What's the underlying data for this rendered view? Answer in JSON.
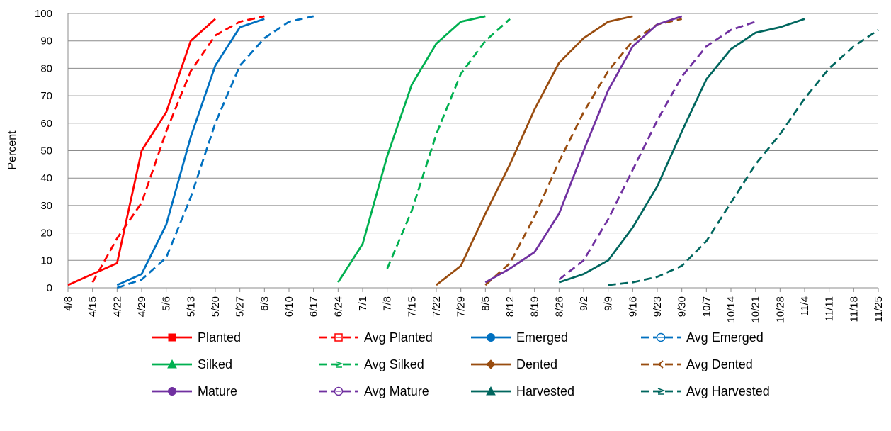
{
  "chart_data": {
    "type": "line",
    "title": "",
    "xlabel": "",
    "ylabel": "Percent",
    "ylim": [
      0,
      100
    ],
    "y_ticks": [
      0,
      10,
      20,
      30,
      40,
      50,
      60,
      70,
      80,
      90,
      100
    ],
    "grid": "horizontal",
    "legend_position": "bottom",
    "categories": [
      "4/8",
      "4/15",
      "4/22",
      "4/29",
      "5/6",
      "5/13",
      "5/20",
      "5/27",
      "6/3",
      "6/10",
      "6/17",
      "6/24",
      "7/1",
      "7/8",
      "7/15",
      "7/22",
      "7/29",
      "8/5",
      "8/12",
      "8/19",
      "8/26",
      "9/2",
      "9/9",
      "9/16",
      "9/23",
      "9/30",
      "10/7",
      "10/14",
      "10/21",
      "10/28",
      "11/4",
      "11/11",
      "11/18",
      "11/25"
    ],
    "series": [
      {
        "name": "Planted",
        "color": "#ff0000",
        "dashed": false,
        "marker": "square",
        "values": [
          1,
          5,
          9,
          50,
          64,
          90,
          98,
          null,
          null,
          null,
          null,
          null,
          null,
          null,
          null,
          null,
          null,
          null,
          null,
          null,
          null,
          null,
          null,
          null,
          null,
          null,
          null,
          null,
          null,
          null,
          null,
          null,
          null,
          null
        ]
      },
      {
        "name": "Avg Planted",
        "color": "#ff0000",
        "dashed": true,
        "marker": "square-open",
        "values": [
          null,
          2,
          18,
          31,
          57,
          79,
          92,
          97,
          99,
          null,
          null,
          null,
          null,
          null,
          null,
          null,
          null,
          null,
          null,
          null,
          null,
          null,
          null,
          null,
          null,
          null,
          null,
          null,
          null,
          null,
          null,
          null,
          null,
          null
        ]
      },
      {
        "name": "Emerged",
        "color": "#0070c0",
        "dashed": false,
        "marker": "circle",
        "values": [
          null,
          null,
          1,
          5,
          23,
          55,
          81,
          95,
          98,
          null,
          null,
          null,
          null,
          null,
          null,
          null,
          null,
          null,
          null,
          null,
          null,
          null,
          null,
          null,
          null,
          null,
          null,
          null,
          null,
          null,
          null,
          null,
          null,
          null
        ]
      },
      {
        "name": "Avg Emerged",
        "color": "#0070c0",
        "dashed": true,
        "marker": "circle-open",
        "values": [
          null,
          null,
          0,
          3,
          11,
          33,
          60,
          81,
          91,
          97,
          99,
          null,
          null,
          null,
          null,
          null,
          null,
          null,
          null,
          null,
          null,
          null,
          null,
          null,
          null,
          null,
          null,
          null,
          null,
          null,
          null,
          null,
          null,
          null
        ]
      },
      {
        "name": "Silked",
        "color": "#00b050",
        "dashed": false,
        "marker": "triangle",
        "values": [
          null,
          null,
          null,
          null,
          null,
          null,
          null,
          null,
          null,
          null,
          null,
          2,
          16,
          48,
          74,
          89,
          97,
          99,
          null,
          null,
          null,
          null,
          null,
          null,
          null,
          null,
          null,
          null,
          null,
          null,
          null,
          null,
          null,
          null
        ]
      },
      {
        "name": "Avg Silked",
        "color": "#00b050",
        "dashed": true,
        "marker": "triangle-open",
        "values": [
          null,
          null,
          null,
          null,
          null,
          null,
          null,
          null,
          null,
          null,
          null,
          null,
          null,
          7,
          28,
          56,
          78,
          90,
          98,
          null,
          null,
          null,
          null,
          null,
          null,
          null,
          null,
          null,
          null,
          null,
          null,
          null,
          null,
          null
        ]
      },
      {
        "name": "Dented",
        "color": "#994c0f",
        "dashed": false,
        "marker": "diamond",
        "values": [
          null,
          null,
          null,
          null,
          null,
          null,
          null,
          null,
          null,
          null,
          null,
          null,
          null,
          null,
          null,
          1,
          8,
          27,
          45,
          65,
          82,
          91,
          97,
          99,
          null,
          null,
          null,
          null,
          null,
          null,
          null,
          null,
          null,
          null
        ]
      },
      {
        "name": "Avg Dented",
        "color": "#994c0f",
        "dashed": true,
        "marker": "diamond-open",
        "values": [
          null,
          null,
          null,
          null,
          null,
          null,
          null,
          null,
          null,
          null,
          null,
          null,
          null,
          null,
          null,
          null,
          null,
          1,
          9,
          26,
          46,
          64,
          79,
          90,
          96,
          98,
          null,
          null,
          null,
          null,
          null,
          null,
          null,
          null
        ]
      },
      {
        "name": "Mature",
        "color": "#7030a0",
        "dashed": false,
        "marker": "circle",
        "values": [
          null,
          null,
          null,
          null,
          null,
          null,
          null,
          null,
          null,
          null,
          null,
          null,
          null,
          null,
          null,
          null,
          null,
          2,
          7,
          13,
          27,
          50,
          72,
          88,
          96,
          99,
          null,
          null,
          null,
          null,
          null,
          null,
          null,
          null
        ]
      },
      {
        "name": "Avg Mature",
        "color": "#7030a0",
        "dashed": true,
        "marker": "circle-open",
        "values": [
          null,
          null,
          null,
          null,
          null,
          null,
          null,
          null,
          null,
          null,
          null,
          null,
          null,
          null,
          null,
          null,
          null,
          null,
          null,
          null,
          3,
          10,
          25,
          43,
          61,
          77,
          88,
          94,
          97,
          null,
          null,
          null,
          null,
          null
        ]
      },
      {
        "name": "Harvested",
        "color": "#00665e",
        "dashed": false,
        "marker": "triangle",
        "values": [
          null,
          null,
          null,
          null,
          null,
          null,
          null,
          null,
          null,
          null,
          null,
          null,
          null,
          null,
          null,
          null,
          null,
          null,
          null,
          null,
          2,
          5,
          10,
          22,
          37,
          57,
          76,
          87,
          93,
          95,
          98,
          null,
          null,
          null
        ]
      },
      {
        "name": "Avg Harvested",
        "color": "#00665e",
        "dashed": true,
        "marker": "triangle-open",
        "values": [
          null,
          null,
          null,
          null,
          null,
          null,
          null,
          null,
          null,
          null,
          null,
          null,
          null,
          null,
          null,
          null,
          null,
          null,
          null,
          null,
          null,
          null,
          1,
          2,
          4,
          8,
          17,
          31,
          45,
          56,
          69,
          80,
          88,
          94
        ]
      }
    ]
  }
}
